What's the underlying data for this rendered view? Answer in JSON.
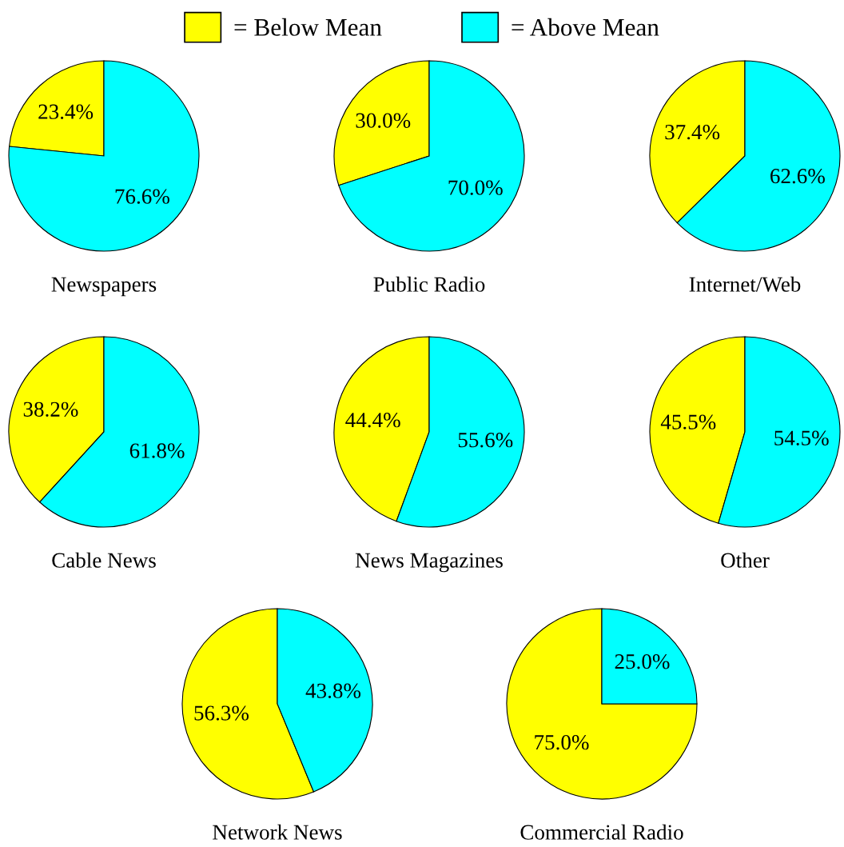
{
  "chart_data": [
    {
      "type": "pie",
      "title": "Newspapers",
      "categories": [
        "= Below Mean",
        "= Above Mean"
      ],
      "values": [
        23.4,
        76.6
      ],
      "value_labels": [
        "23.4%",
        "76.6%"
      ],
      "colors": [
        "#ffff00",
        "#00ffff"
      ],
      "legend": "top"
    },
    {
      "type": "pie",
      "title": "Public Radio",
      "values": [
        30.0,
        70.0
      ],
      "value_labels": [
        "30.0%",
        "70.0%"
      ],
      "colors": [
        "#ffff00",
        "#00ffff"
      ]
    },
    {
      "type": "pie",
      "title": "Internet/Web",
      "values": [
        37.4,
        62.6
      ],
      "value_labels": [
        "37.4%",
        "62.6%"
      ],
      "colors": [
        "#ffff00",
        "#00ffff"
      ]
    },
    {
      "type": "pie",
      "title": "Cable News",
      "values": [
        38.2,
        61.8
      ],
      "value_labels": [
        "38.2%",
        "61.8%"
      ],
      "colors": [
        "#ffff00",
        "#00ffff"
      ]
    },
    {
      "type": "pie",
      "title": "News Magazines",
      "values": [
        44.4,
        55.6
      ],
      "value_labels": [
        "44.4%",
        "55.6%"
      ],
      "colors": [
        "#ffff00",
        "#00ffff"
      ]
    },
    {
      "type": "pie",
      "title": "Other",
      "values": [
        45.5,
        54.5
      ],
      "value_labels": [
        "45.5%",
        "54.5%"
      ],
      "colors": [
        "#ffff00",
        "#00ffff"
      ]
    },
    {
      "type": "pie",
      "title": "Network News",
      "values": [
        56.3,
        43.8
      ],
      "value_labels": [
        "56.3%",
        "43.8%"
      ],
      "colors": [
        "#ffff00",
        "#00ffff"
      ]
    },
    {
      "type": "pie",
      "title": "Commercial Radio",
      "values": [
        75.0,
        25.0
      ],
      "value_labels": [
        "75.0%",
        "25.0%"
      ],
      "colors": [
        "#ffff00",
        "#00ffff"
      ]
    }
  ]
}
